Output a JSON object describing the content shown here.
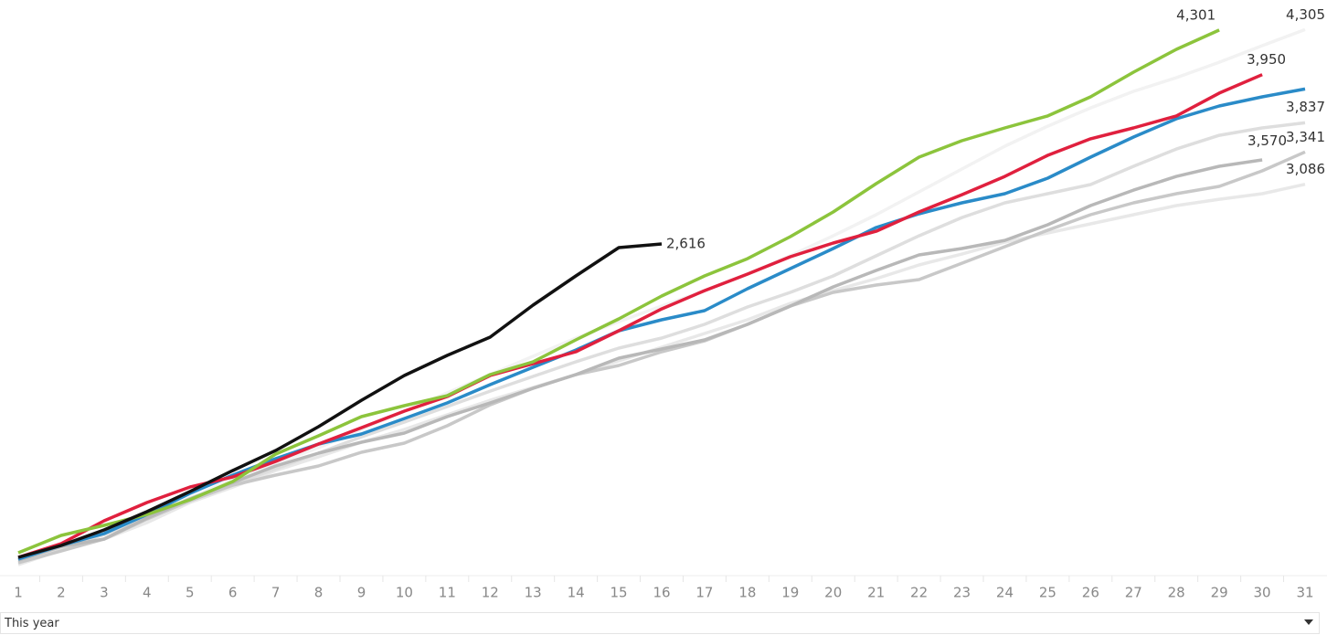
{
  "chart_data": {
    "type": "line",
    "categories": [
      "1",
      "2",
      "3",
      "4",
      "5",
      "6",
      "7",
      "8",
      "9",
      "10",
      "11",
      "12",
      "13",
      "14",
      "15",
      "16",
      "17",
      "18",
      "19",
      "20",
      "21",
      "22",
      "23",
      "24",
      "25",
      "26",
      "27",
      "28",
      "29",
      "30",
      "31"
    ],
    "ylim": [
      0,
      4538
    ],
    "series": [
      {
        "color": "#e8e8e8",
        "values": [
          88,
          204,
          290,
          420,
          578,
          700,
          830,
          938,
          1053,
          1154,
          1269,
          1384,
          1485,
          1586,
          1694,
          1802,
          1910,
          2018,
          2148,
          2248,
          2342,
          2450,
          2536,
          2630,
          2702,
          2774,
          2846,
          2918,
          2968,
          3012,
          3086
        ],
        "value_labels": [
          null,
          null,
          null,
          null,
          null,
          null,
          null,
          null,
          null,
          null,
          null,
          null,
          null,
          null,
          null,
          null,
          null,
          null,
          null,
          null,
          null,
          null,
          null,
          null,
          null,
          null,
          null,
          null,
          null,
          null,
          "3,086"
        ]
      },
      {
        "color": "#f2f2f2",
        "values": [
          110,
          218,
          326,
          470,
          614,
          758,
          888,
          1010,
          1154,
          1298,
          1442,
          1586,
          1730,
          1874,
          2004,
          2126,
          2248,
          2378,
          2522,
          2680,
          2846,
          3026,
          3206,
          3386,
          3544,
          3688,
          3818,
          3926,
          4048,
          4178,
          4305
        ],
        "value_labels": [
          null,
          null,
          null,
          null,
          null,
          null,
          null,
          null,
          null,
          null,
          null,
          null,
          null,
          null,
          null,
          null,
          null,
          null,
          null,
          null,
          null,
          null,
          null,
          null,
          null,
          null,
          null,
          null,
          null,
          null,
          "4,305"
        ]
      },
      {
        "color": "#dedede",
        "values": [
          117,
          218,
          326,
          456,
          592,
          722,
          844,
          967,
          1096,
          1212,
          1334,
          1456,
          1572,
          1687,
          1795,
          1874,
          1982,
          2119,
          2234,
          2364,
          2522,
          2680,
          2824,
          2940,
          3012,
          3084,
          3228,
          3364,
          3472,
          3530,
          3570
        ],
        "value_labels": [
          null,
          null,
          null,
          null,
          null,
          null,
          null,
          null,
          null,
          null,
          null,
          null,
          null,
          null,
          null,
          null,
          null,
          null,
          null,
          null,
          null,
          null,
          null,
          null,
          null,
          null,
          null,
          null,
          null,
          null,
          "3,570"
        ]
      },
      {
        "color": "#c8c8c8",
        "values": [
          103,
          196,
          290,
          448,
          592,
          715,
          794,
          866,
          974,
          1046,
          1183,
          1348,
          1478,
          1586,
          1658,
          1766,
          1852,
          1982,
          2126,
          2234,
          2292,
          2335,
          2464,
          2594,
          2724,
          2846,
          2940,
          3012,
          3069,
          3192,
          3341
        ],
        "value_labels": [
          null,
          null,
          null,
          null,
          null,
          null,
          null,
          null,
          null,
          null,
          null,
          null,
          null,
          null,
          null,
          null,
          null,
          null,
          null,
          null,
          null,
          null,
          null,
          null,
          null,
          null,
          null,
          null,
          null,
          null,
          "3,341"
        ]
      },
      {
        "color": "#b8b8b8",
        "values": [
          124,
          232,
          290,
          456,
          607,
          736,
          866,
          967,
          1053,
          1125,
          1255,
          1363,
          1478,
          1586,
          1716,
          1788,
          1860,
          1982,
          2126,
          2277,
          2407,
          2529,
          2580,
          2644,
          2767,
          2918,
          3040,
          3148,
          3228,
          3278,
          null
        ]
      },
      {
        "color": "#2a8bc8",
        "values": [
          132,
          240,
          333,
          484,
          650,
          794,
          924,
          1039,
          1118,
          1240,
          1363,
          1507,
          1644,
          1780,
          1932,
          2018,
          2090,
          2263,
          2421,
          2580,
          2745,
          2853,
          2940,
          3012,
          3134,
          3300,
          3458,
          3602,
          3703,
          3775,
          3837
        ],
        "value_labels": [
          null,
          null,
          null,
          null,
          null,
          null,
          null,
          null,
          null,
          null,
          null,
          null,
          null,
          null,
          null,
          null,
          null,
          null,
          null,
          null,
          null,
          null,
          null,
          null,
          null,
          null,
          null,
          null,
          null,
          null,
          "3,837"
        ]
      },
      {
        "color": "#e0203e",
        "values": [
          146,
          254,
          434,
          578,
          700,
          780,
          902,
          1039,
          1168,
          1298,
          1413,
          1579,
          1672,
          1766,
          1932,
          2104,
          2248,
          2378,
          2515,
          2623,
          2716,
          2868,
          3004,
          3148,
          3314,
          3444,
          3530,
          3624,
          3804,
          3950,
          null
        ],
        "value_labels": [
          null,
          null,
          null,
          null,
          null,
          null,
          null,
          null,
          null,
          null,
          null,
          null,
          null,
          null,
          null,
          null,
          null,
          null,
          null,
          null,
          null,
          null,
          null,
          null,
          null,
          null,
          null,
          null,
          null,
          "3,950",
          null
        ]
      },
      {
        "color": "#8cc43c",
        "values": [
          182,
          319,
          398,
          484,
          600,
          744,
          960,
          1104,
          1255,
          1341,
          1420,
          1586,
          1687,
          1860,
          2025,
          2205,
          2364,
          2500,
          2673,
          2868,
          3091,
          3300,
          3429,
          3530,
          3624,
          3775,
          3969,
          4149,
          4301,
          null,
          null
        ],
        "value_labels": [
          null,
          null,
          null,
          null,
          null,
          null,
          null,
          null,
          null,
          null,
          null,
          null,
          null,
          null,
          null,
          null,
          null,
          null,
          null,
          null,
          null,
          null,
          null,
          null,
          null,
          null,
          null,
          null,
          "4,301",
          null,
          null
        ]
      },
      {
        "color": "#111111",
        "values": [
          146,
          240,
          362,
          506,
          664,
          830,
          988,
          1176,
          1384,
          1579,
          1737,
          1881,
          2133,
          2364,
          2587,
          2616,
          null,
          null,
          null,
          null,
          null,
          null,
          null,
          null,
          null,
          null,
          null,
          null,
          null,
          null,
          null
        ],
        "value_labels": [
          null,
          null,
          null,
          null,
          null,
          null,
          null,
          null,
          null,
          null,
          null,
          null,
          null,
          null,
          null,
          "2,616",
          null,
          null,
          null,
          null,
          null,
          null,
          null,
          null,
          null,
          null,
          null,
          null,
          null,
          null,
          null
        ]
      }
    ]
  },
  "filter": {
    "label": "This year"
  }
}
